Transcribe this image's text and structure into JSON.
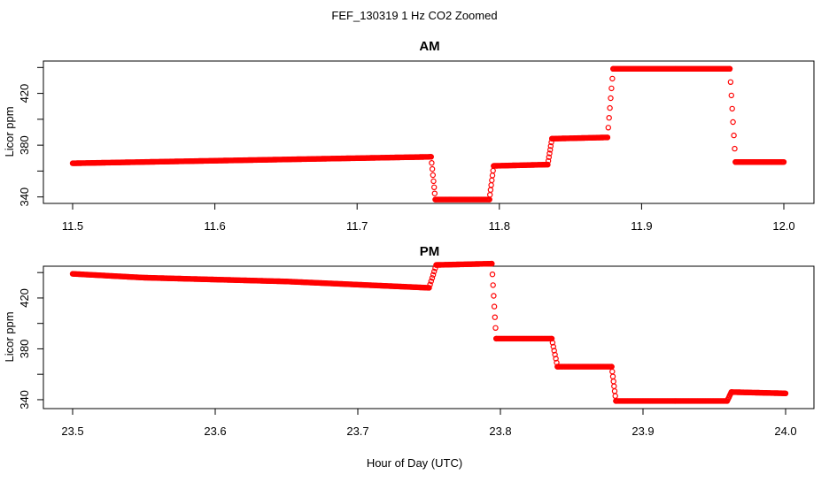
{
  "figure": {
    "suptitle": "FEF_130319  1 Hz CO2 Zoomed",
    "xlabel": "Hour of Day (UTC)"
  },
  "colors": {
    "points": "#ff0000",
    "axis": "#000000"
  },
  "chart_data": [
    {
      "type": "scatter",
      "title": "AM",
      "ylabel": "Licor ppm",
      "xlim": [
        11.5,
        12.0
      ],
      "ylim": [
        335,
        445
      ],
      "xticks": [
        "11.5",
        "11.6",
        "11.7",
        "11.8",
        "11.9",
        "12.0"
      ],
      "yticks": [
        "340",
        "380",
        "420"
      ],
      "marker": "open-circle",
      "segments": [
        {
          "x": [
            11.5,
            11.752
          ],
          "y": [
            366,
            371
          ]
        },
        {
          "x": [
            11.752,
            11.755
          ],
          "y": [
            371,
            338
          ]
        },
        {
          "x": [
            11.755,
            11.793
          ],
          "y": [
            338,
            338
          ]
        },
        {
          "x": [
            11.793,
            11.796
          ],
          "y": [
            338,
            364
          ]
        },
        {
          "x": [
            11.796,
            11.834
          ],
          "y": [
            364,
            365
          ]
        },
        {
          "x": [
            11.834,
            11.837
          ],
          "y": [
            365,
            385
          ]
        },
        {
          "x": [
            11.837,
            11.876
          ],
          "y": [
            385,
            386
          ]
        },
        {
          "x": [
            11.876,
            11.88
          ],
          "y": [
            386,
            439
          ]
        },
        {
          "x": [
            11.88,
            11.962
          ],
          "y": [
            439,
            439
          ]
        },
        {
          "x": [
            11.962,
            11.966
          ],
          "y": [
            439,
            367
          ]
        },
        {
          "x": [
            11.966,
            12.0
          ],
          "y": [
            367,
            367
          ]
        }
      ]
    },
    {
      "type": "scatter",
      "title": "PM",
      "ylabel": "Licor ppm",
      "xlim": [
        23.5,
        24.0
      ],
      "ylim": [
        333,
        445
      ],
      "xticks": [
        "23.5",
        "23.6",
        "23.7",
        "23.8",
        "23.9",
        "24.0"
      ],
      "yticks": [
        "340",
        "380",
        "420"
      ],
      "marker": "open-circle",
      "segments": [
        {
          "x": [
            23.5,
            23.55
          ],
          "y": [
            439,
            436
          ]
        },
        {
          "x": [
            23.55,
            23.65
          ],
          "y": [
            436,
            433
          ]
        },
        {
          "x": [
            23.65,
            23.75
          ],
          "y": [
            433,
            428
          ]
        },
        {
          "x": [
            23.75,
            23.755
          ],
          "y": [
            428,
            446
          ]
        },
        {
          "x": [
            23.755,
            23.794
          ],
          "y": [
            446,
            447
          ]
        },
        {
          "x": [
            23.794,
            23.797
          ],
          "y": [
            447,
            388
          ]
        },
        {
          "x": [
            23.797,
            23.836
          ],
          "y": [
            388,
            388
          ]
        },
        {
          "x": [
            23.836,
            23.84
          ],
          "y": [
            388,
            366
          ]
        },
        {
          "x": [
            23.84,
            23.878
          ],
          "y": [
            366,
            366
          ]
        },
        {
          "x": [
            23.878,
            23.881
          ],
          "y": [
            366,
            339
          ]
        },
        {
          "x": [
            23.881,
            23.959
          ],
          "y": [
            339,
            339
          ]
        },
        {
          "x": [
            23.959,
            23.962
          ],
          "y": [
            339,
            346
          ]
        },
        {
          "x": [
            23.962,
            24.0
          ],
          "y": [
            346,
            345
          ]
        }
      ]
    }
  ]
}
